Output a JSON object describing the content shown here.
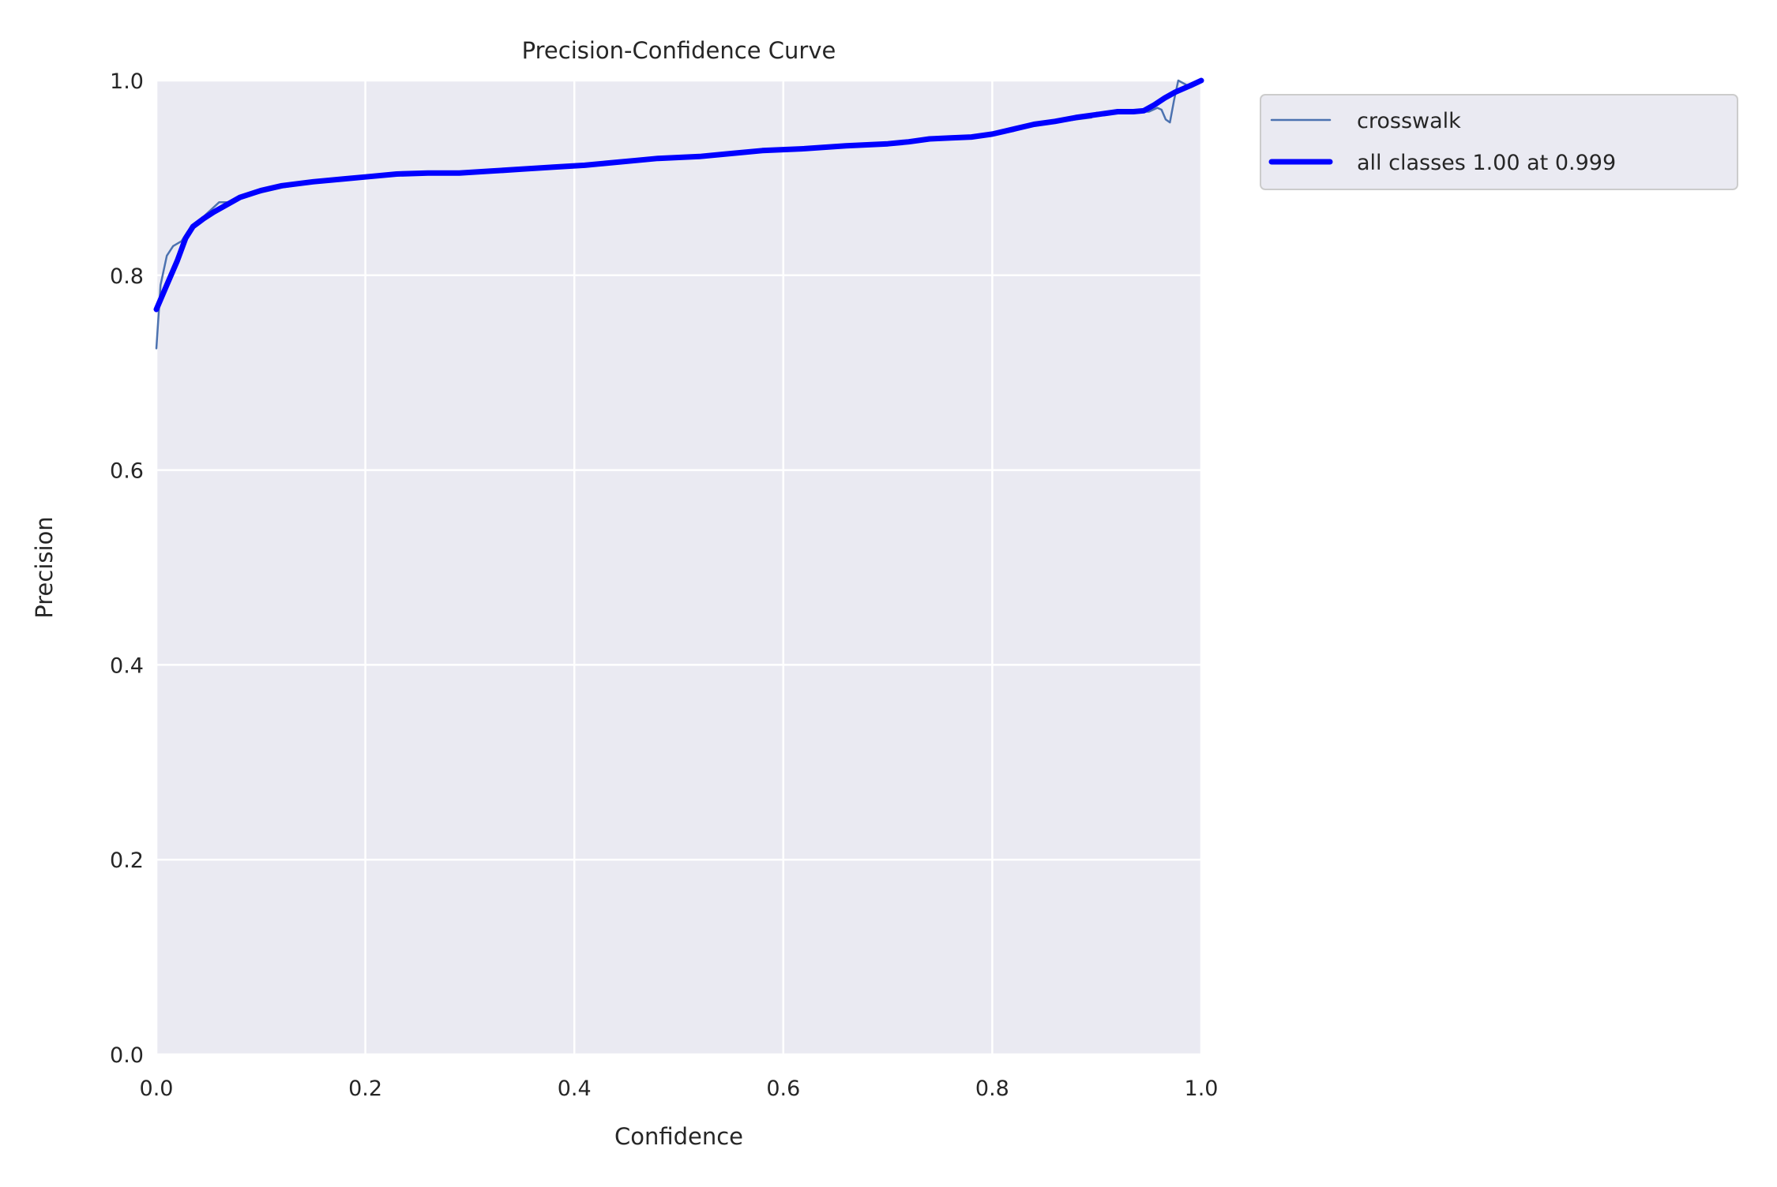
{
  "chart_data": {
    "type": "line",
    "title": "Precision-Confidence Curve",
    "xlabel": "Confidence",
    "ylabel": "Precision",
    "xlim": [
      0,
      1
    ],
    "ylim": [
      0,
      1
    ],
    "grid": true,
    "legend_position": "outside-top-right",
    "x_ticks": [
      "0.0",
      "0.2",
      "0.4",
      "0.6",
      "0.8",
      "1.0"
    ],
    "y_ticks": [
      "0.0",
      "0.2",
      "0.4",
      "0.6",
      "0.8",
      "1.0"
    ],
    "colors": {
      "background": "#eaeaf2",
      "grid": "#ffffff",
      "crosswalk": "#4c72b0",
      "all_classes": "#0000ff"
    },
    "series": [
      {
        "name": "crosswalk",
        "x": [
          0.0,
          0.004,
          0.01,
          0.016,
          0.024,
          0.03,
          0.04,
          0.055,
          0.06,
          0.07,
          0.08,
          0.1,
          0.12,
          0.15,
          0.18,
          0.2,
          0.23,
          0.26,
          0.29,
          0.32,
          0.35,
          0.38,
          0.41,
          0.43,
          0.46,
          0.48,
          0.52,
          0.55,
          0.58,
          0.62,
          0.66,
          0.7,
          0.72,
          0.74,
          0.76,
          0.78,
          0.8,
          0.82,
          0.84,
          0.86,
          0.88,
          0.895,
          0.9,
          0.92,
          0.93,
          0.94,
          0.95,
          0.958,
          0.962,
          0.966,
          0.97,
          0.974,
          0.978,
          0.99,
          1.0
        ],
        "y": [
          0.725,
          0.79,
          0.82,
          0.83,
          0.835,
          0.845,
          0.855,
          0.87,
          0.875,
          0.875,
          0.88,
          0.885,
          0.89,
          0.895,
          0.899,
          0.9,
          0.903,
          0.904,
          0.905,
          0.906,
          0.909,
          0.911,
          0.913,
          0.915,
          0.918,
          0.92,
          0.922,
          0.925,
          0.928,
          0.93,
          0.933,
          0.935,
          0.937,
          0.94,
          0.941,
          0.941,
          0.944,
          0.948,
          0.955,
          0.957,
          0.96,
          0.962,
          0.967,
          0.967,
          0.968,
          0.968,
          0.968,
          0.972,
          0.97,
          0.96,
          0.957,
          0.98,
          1.0,
          0.993,
          1.0
        ]
      },
      {
        "name": "all classes 1.00 at 0.999",
        "x": [
          0.0,
          0.01,
          0.02,
          0.028,
          0.035,
          0.045,
          0.055,
          0.065,
          0.08,
          0.1,
          0.12,
          0.15,
          0.18,
          0.2,
          0.23,
          0.26,
          0.29,
          0.32,
          0.35,
          0.38,
          0.41,
          0.43,
          0.46,
          0.48,
          0.52,
          0.55,
          0.58,
          0.62,
          0.66,
          0.7,
          0.72,
          0.74,
          0.76,
          0.78,
          0.8,
          0.82,
          0.84,
          0.86,
          0.88,
          0.9,
          0.92,
          0.935,
          0.945,
          0.955,
          0.965,
          0.975,
          0.99,
          1.0
        ],
        "y": [
          0.765,
          0.79,
          0.815,
          0.838,
          0.85,
          0.858,
          0.865,
          0.871,
          0.88,
          0.887,
          0.892,
          0.896,
          0.899,
          0.901,
          0.904,
          0.905,
          0.905,
          0.907,
          0.909,
          0.911,
          0.913,
          0.915,
          0.918,
          0.92,
          0.922,
          0.925,
          0.928,
          0.93,
          0.933,
          0.935,
          0.937,
          0.94,
          0.941,
          0.942,
          0.945,
          0.95,
          0.955,
          0.958,
          0.962,
          0.965,
          0.968,
          0.968,
          0.969,
          0.975,
          0.982,
          0.988,
          0.995,
          1.0
        ]
      }
    ]
  }
}
